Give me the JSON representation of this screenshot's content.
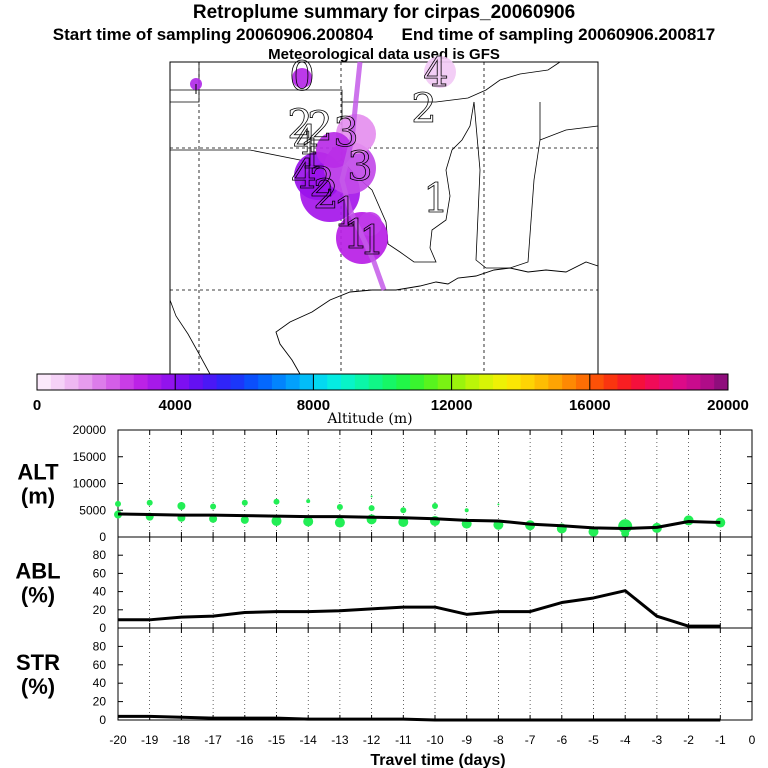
{
  "header": {
    "title": "Retroplume summary for cirpas_20060906",
    "start_label": "Start time of sampling 20060906.200804",
    "end_label": "End time of sampling 20060906.200817",
    "met_label": "Meteorological data used is GFS"
  },
  "map": {
    "day_labels": [
      {
        "text": "1",
        "day": -1
      },
      {
        "text": "1",
        "day": -2
      },
      {
        "text": "1",
        "day": -3
      },
      {
        "text": "2",
        "day": -4
      },
      {
        "text": "4",
        "day": -5
      },
      {
        "text": "3",
        "day": -6
      },
      {
        "text": "3",
        "day": -7
      },
      {
        "text": "1",
        "day": -8
      },
      {
        "text": "2",
        "day": -9
      },
      {
        "text": "4",
        "day": -10
      },
      {
        "text": "2",
        "day": -11
      },
      {
        "text": "0",
        "day": -12
      },
      {
        "text": "4",
        "day": -13
      },
      {
        "text": "2",
        "day": -14
      },
      {
        "text": "1",
        "day": -15
      },
      {
        "text": "2",
        "day": -16
      }
    ]
  },
  "colorbar": {
    "title": "Altitude (m)",
    "min": 0,
    "max": 20000,
    "step": 4000,
    "bins": 50,
    "tick_labels": [
      "0",
      "4000",
      "8000",
      "12000",
      "16000",
      "20000"
    ],
    "colors": [
      "#fbe9fb",
      "#f5d2f7",
      "#eeb8f2",
      "#e69cee",
      "#dc7cea",
      "#d45ee8",
      "#c93de6",
      "#bc22e6",
      "#a719e9",
      "#9213ed",
      "#7d0ff1",
      "#6410f3",
      "#4a18f6",
      "#3024f8",
      "#1b37fa",
      "#0b4ffc",
      "#0468fd",
      "#0284fd",
      "#02a0fc",
      "#02bdf8",
      "#03d9f1",
      "#05ece2",
      "#08f4c8",
      "#0bf6a8",
      "#10f787",
      "#16f766",
      "#21f648",
      "#39f52f",
      "#58f41e",
      "#7af313",
      "#9bf40c",
      "#bbf508",
      "#d8f406",
      "#eef105",
      "#fbe604",
      "#fed404",
      "#febd03",
      "#fea403",
      "#fe8903",
      "#fd6e04",
      "#fc5107",
      "#fa350f",
      "#f81e22",
      "#f5103c",
      "#f00b58",
      "#e80a72",
      "#dd0a88",
      "#c90b8d",
      "#b00c88",
      "#8f0d7c"
    ]
  },
  "chart_data": [
    {
      "type": "line",
      "name": "alt-panel",
      "ylabel": "ALT\n(m)",
      "ylabel_lines": [
        "ALT",
        "(m)"
      ],
      "ylim": [
        0,
        20000
      ],
      "yticks": [
        0,
        5000,
        10000,
        15000,
        20000
      ],
      "ytick_labels": [
        "0",
        "5000",
        "10000",
        "15000",
        "20000"
      ],
      "x": [
        -20,
        -19,
        -18,
        -17,
        -16,
        -15,
        -14,
        -13,
        -12,
        -11,
        -10,
        -9,
        -8,
        -7,
        -6,
        -5,
        -4,
        -3,
        -2,
        -1
      ],
      "series": [
        {
          "name": "mean altitude",
          "values": [
            4300,
            4200,
            4100,
            4100,
            4000,
            3900,
            3800,
            3800,
            3700,
            3600,
            3400,
            3100,
            3000,
            2400,
            2100,
            1700,
            1600,
            1800,
            2900,
            2700
          ]
        }
      ],
      "scatter": [
        {
          "x": -20,
          "y": 6200,
          "r": 3
        },
        {
          "x": -20,
          "y": 4200,
          "r": 4
        },
        {
          "x": -19,
          "y": 6400,
          "r": 3
        },
        {
          "x": -19,
          "y": 3800,
          "r": 4
        },
        {
          "x": -18,
          "y": 5800,
          "r": 4
        },
        {
          "x": -18,
          "y": 3600,
          "r": 4
        },
        {
          "x": -17,
          "y": 5700,
          "r": 3
        },
        {
          "x": -17,
          "y": 3400,
          "r": 4
        },
        {
          "x": -16,
          "y": 6400,
          "r": 3
        },
        {
          "x": -16,
          "y": 3200,
          "r": 4
        },
        {
          "x": -15,
          "y": 6600,
          "r": 3
        },
        {
          "x": -15,
          "y": 3000,
          "r": 5
        },
        {
          "x": -14,
          "y": 6700,
          "r": 2
        },
        {
          "x": -14,
          "y": 2900,
          "r": 5
        },
        {
          "x": -13,
          "y": 5600,
          "r": 3
        },
        {
          "x": -13,
          "y": 2700,
          "r": 5
        },
        {
          "x": -12,
          "y": 7600,
          "r": 1
        },
        {
          "x": -12,
          "y": 5400,
          "r": 3
        },
        {
          "x": -12,
          "y": 3300,
          "r": 5
        },
        {
          "x": -11,
          "y": 5000,
          "r": 3
        },
        {
          "x": -11,
          "y": 2800,
          "r": 5
        },
        {
          "x": -10,
          "y": 5800,
          "r": 3
        },
        {
          "x": -10,
          "y": 3000,
          "r": 5
        },
        {
          "x": -9,
          "y": 5000,
          "r": 2
        },
        {
          "x": -9,
          "y": 2500,
          "r": 5
        },
        {
          "x": -8,
          "y": 6100,
          "r": 1
        },
        {
          "x": -8,
          "y": 2300,
          "r": 5
        },
        {
          "x": -7,
          "y": 2200,
          "r": 5
        },
        {
          "x": -6,
          "y": 1600,
          "r": 5
        },
        {
          "x": -5,
          "y": 1000,
          "r": 5
        },
        {
          "x": -4,
          "y": 2000,
          "r": 7
        },
        {
          "x": -4,
          "y": 700,
          "r": 4
        },
        {
          "x": -3,
          "y": 1700,
          "r": 5
        },
        {
          "x": -2,
          "y": 3100,
          "r": 5
        },
        {
          "x": -1,
          "y": 2700,
          "r": 5
        }
      ]
    },
    {
      "type": "line",
      "name": "abl-panel",
      "ylabel_lines": [
        "ABL",
        "(%)"
      ],
      "ylim": [
        0,
        100
      ],
      "yticks": [
        0,
        20,
        40,
        60,
        80,
        100
      ],
      "ytick_labels": [
        "0",
        "20",
        "40",
        "60",
        "80",
        ""
      ],
      "x": [
        -20,
        -19,
        -18,
        -17,
        -16,
        -15,
        -14,
        -13,
        -12,
        -11,
        -10,
        -9,
        -8,
        -7,
        -6,
        -5,
        -4,
        -3,
        -2,
        -1
      ],
      "series": [
        {
          "name": "ABL fraction",
          "values": [
            9,
            9,
            12,
            13,
            17,
            18,
            18,
            19,
            21,
            23,
            23,
            15,
            18,
            18,
            28,
            33,
            41,
            13,
            2,
            2
          ]
        }
      ]
    },
    {
      "type": "line",
      "name": "str-panel",
      "ylabel_lines": [
        "STR",
        "(%)"
      ],
      "ylim": [
        0,
        100
      ],
      "yticks": [
        0,
        20,
        40,
        60,
        80,
        100
      ],
      "ytick_labels": [
        "0",
        "20",
        "40",
        "60",
        "80",
        ""
      ],
      "x": [
        -20,
        -19,
        -18,
        -17,
        -16,
        -15,
        -14,
        -13,
        -12,
        -11,
        -10,
        -9,
        -8,
        -7,
        -6,
        -5,
        -4,
        -3,
        -2,
        -1
      ],
      "series": [
        {
          "name": "STR fraction",
          "values": [
            4,
            4,
            3,
            2,
            2,
            2,
            1,
            1,
            1,
            1,
            0,
            0,
            0,
            0,
            0,
            0,
            0,
            0,
            0,
            0
          ]
        }
      ],
      "xlabel": "Travel time (days)",
      "xlim": [
        -20,
        0
      ],
      "xticks": [
        -20,
        -19,
        -18,
        -17,
        -16,
        -15,
        -14,
        -13,
        -12,
        -11,
        -10,
        -9,
        -8,
        -7,
        -6,
        -5,
        -4,
        -3,
        -2,
        -1,
        0
      ],
      "xtick_labels": [
        "-20",
        "-19",
        "-18",
        "-17",
        "-16",
        "-15",
        "-14",
        "-13",
        "-12",
        "-11",
        "-10",
        "-9",
        "-8",
        "-7",
        "-6",
        "-5",
        "-4",
        "-3",
        "-2",
        "-1",
        "0"
      ]
    }
  ]
}
